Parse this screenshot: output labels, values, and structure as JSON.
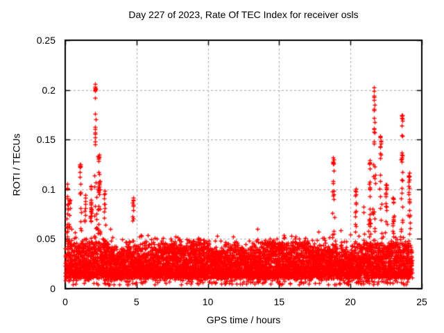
{
  "chart_data": {
    "type": "scatter",
    "title": "Day 227 of 2023, Rate Of TEC Index for receiver osls",
    "xlabel": "GPS time / hours",
    "ylabel": "ROTI / TECUs",
    "xlim": [
      0,
      25
    ],
    "ylim": [
      0,
      0.25
    ],
    "xticks": [
      0,
      5,
      10,
      15,
      20,
      25
    ],
    "yticks": [
      0,
      0.05,
      0.1,
      0.15,
      0.2,
      0.25
    ],
    "xtick_labels": [
      "0",
      "5",
      "10",
      "15",
      "20",
      "25"
    ],
    "ytick_labels": [
      "0",
      "0.05",
      "0.1",
      "0.15",
      "0.2",
      "0.25"
    ],
    "grid": true,
    "grid_style": "dashed",
    "grid_color": "#aaaaaa",
    "border_color": "#000000",
    "background_color": "#ffffff",
    "legend": "none",
    "marker": {
      "symbol": "+",
      "color": "#ff0000",
      "size": 6
    },
    "data_span_hours": [
      0,
      24.3
    ],
    "sample_interval_minutes": 1,
    "points_per_minute": 5,
    "seed": 1337,
    "baseline_band": {
      "min": 0.008,
      "typical": 0.02,
      "max": 0.045
    },
    "quiet_top": 0.052,
    "spikes": [
      {
        "x": 0.15,
        "peak": 0.105,
        "width": 0.12
      },
      {
        "x": 0.3,
        "peak": 0.09,
        "width": 0.15
      },
      {
        "x": 0.7,
        "peak": 0.075,
        "width": 0.1
      },
      {
        "x": 1.05,
        "peak": 0.127,
        "width": 0.07
      },
      {
        "x": 1.4,
        "peak": 0.095,
        "width": 0.08
      },
      {
        "x": 1.8,
        "peak": 0.105,
        "width": 0.1
      },
      {
        "x": 2.1,
        "peak": 0.207,
        "width": 0.08
      },
      {
        "x": 2.35,
        "peak": 0.135,
        "width": 0.12
      },
      {
        "x": 2.75,
        "peak": 0.1,
        "width": 0.1
      },
      {
        "x": 3.15,
        "peak": 0.08,
        "width": 0.1
      },
      {
        "x": 3.7,
        "peak": 0.065,
        "width": 0.1
      },
      {
        "x": 4.2,
        "peak": 0.06,
        "width": 0.1
      },
      {
        "x": 4.75,
        "peak": 0.093,
        "width": 0.08
      },
      {
        "x": 5.3,
        "peak": 0.065,
        "width": 0.1
      },
      {
        "x": 6.1,
        "peak": 0.06,
        "width": 0.12
      },
      {
        "x": 7.0,
        "peak": 0.052,
        "width": 0.15
      },
      {
        "x": 8.0,
        "peak": 0.066,
        "width": 0.07
      },
      {
        "x": 8.6,
        "peak": 0.056,
        "width": 0.1
      },
      {
        "x": 9.6,
        "peak": 0.05,
        "width": 0.15
      },
      {
        "x": 10.6,
        "peak": 0.053,
        "width": 0.12
      },
      {
        "x": 11.5,
        "peak": 0.056,
        "width": 0.1
      },
      {
        "x": 12.4,
        "peak": 0.06,
        "width": 0.1
      },
      {
        "x": 13.45,
        "peak": 0.073,
        "width": 0.1
      },
      {
        "x": 14.3,
        "peak": 0.056,
        "width": 0.1
      },
      {
        "x": 15.3,
        "peak": 0.058,
        "width": 0.12
      },
      {
        "x": 16.3,
        "peak": 0.056,
        "width": 0.12
      },
      {
        "x": 17.1,
        "peak": 0.053,
        "width": 0.1
      },
      {
        "x": 17.75,
        "peak": 0.062,
        "width": 0.08
      },
      {
        "x": 18.8,
        "peak": 0.132,
        "width": 0.08
      },
      {
        "x": 19.35,
        "peak": 0.078,
        "width": 0.1
      },
      {
        "x": 20.0,
        "peak": 0.082,
        "width": 0.1
      },
      {
        "x": 20.35,
        "peak": 0.103,
        "width": 0.07
      },
      {
        "x": 20.9,
        "peak": 0.088,
        "width": 0.08
      },
      {
        "x": 21.35,
        "peak": 0.13,
        "width": 0.09
      },
      {
        "x": 21.65,
        "peak": 0.203,
        "width": 0.08
      },
      {
        "x": 22.1,
        "peak": 0.155,
        "width": 0.08
      },
      {
        "x": 22.5,
        "peak": 0.105,
        "width": 0.09
      },
      {
        "x": 23.0,
        "peak": 0.092,
        "width": 0.08
      },
      {
        "x": 23.6,
        "peak": 0.176,
        "width": 0.07
      },
      {
        "x": 24.1,
        "peak": 0.118,
        "width": 0.08
      }
    ]
  }
}
